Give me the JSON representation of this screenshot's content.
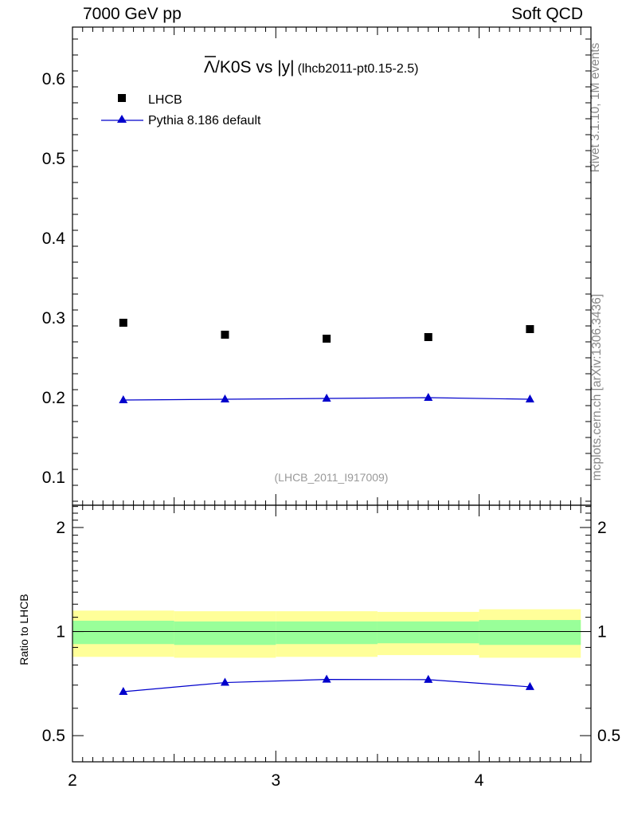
{
  "header": {
    "left": "7000 GeV pp",
    "right": "Soft QCD"
  },
  "side_labels": {
    "rivet": "Rivet 3.1.10,  1M events",
    "mcplots": "mcplots.cern.ch [arXiv:1306.3436]"
  },
  "colors": {
    "data": "#000000",
    "mc": "#0000cc",
    "band_outer": "#ffff99",
    "band_inner": "#99ff99"
  },
  "chart_data": [
    {
      "type": "scatter",
      "title_main": "/K0S vs |y|",
      "title_lambda": "Λ",
      "title_sub": "(lhcb2011-pt0.15-2.5)",
      "watermark": "(LHCB_2011_I917009)",
      "xlim": [
        2,
        4.55
      ],
      "ylim": [
        0.065,
        0.665
      ],
      "yticks": [
        "0.1",
        "0.2",
        "0.3",
        "0.4",
        "0.5",
        "0.6"
      ],
      "ytick_values": [
        0.1,
        0.2,
        0.3,
        0.4,
        0.5,
        0.6
      ],
      "legend": [
        "LHCB",
        "Pythia 8.186 default"
      ],
      "legend_position": "top-left",
      "series": [
        {
          "name": "LHCB",
          "marker": "square",
          "x": [
            2.25,
            2.75,
            3.25,
            3.75,
            4.25
          ],
          "values": [
            0.294,
            0.279,
            0.274,
            0.276,
            0.286
          ]
        },
        {
          "name": "Pythia 8.186 default",
          "marker": "triangle",
          "x": [
            2.25,
            2.75,
            3.25,
            3.75,
            4.25
          ],
          "values": [
            0.197,
            0.198,
            0.199,
            0.2,
            0.198
          ]
        }
      ]
    },
    {
      "type": "line",
      "ylabel": "Ratio to LHCB",
      "xlim": [
        2,
        4.55
      ],
      "ylim": [
        0.42,
        2.32
      ],
      "xticks": [
        "2",
        "3",
        "4"
      ],
      "xtick_values": [
        2,
        3,
        4
      ],
      "yticks": [
        "0.5",
        "1",
        "2"
      ],
      "ytick_values": [
        0.5,
        1,
        2
      ],
      "bands": [
        {
          "x0": 2.0,
          "x1": 2.5,
          "outer": [
            0.845,
            1.15
          ],
          "inner": [
            0.92,
            1.075
          ]
        },
        {
          "x0": 2.5,
          "x1": 3.0,
          "outer": [
            0.84,
            1.145
          ],
          "inner": [
            0.915,
            1.07
          ]
        },
        {
          "x0": 3.0,
          "x1": 3.5,
          "outer": [
            0.845,
            1.145
          ],
          "inner": [
            0.92,
            1.07
          ]
        },
        {
          "x0": 3.5,
          "x1": 4.0,
          "outer": [
            0.855,
            1.14
          ],
          "inner": [
            0.925,
            1.07
          ]
        },
        {
          "x0": 4.0,
          "x1": 4.5,
          "outer": [
            0.84,
            1.16
          ],
          "inner": [
            0.915,
            1.08
          ]
        }
      ],
      "series": [
        {
          "name": "Pythia 8.186 default",
          "marker": "triangle",
          "x": [
            2.25,
            2.75,
            3.25,
            3.75,
            4.25
          ],
          "values": [
            0.67,
            0.712,
            0.727,
            0.726,
            0.692
          ]
        }
      ]
    }
  ]
}
